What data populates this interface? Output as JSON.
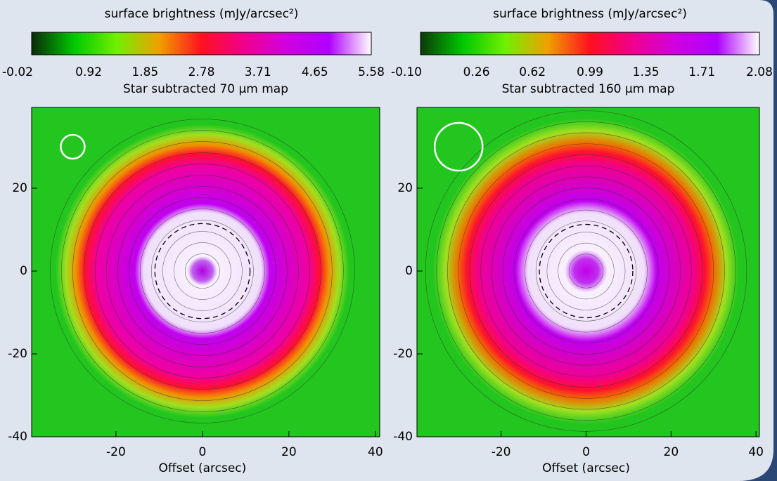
{
  "chart_data": [
    {
      "type": "image",
      "title": "Star subtracted 70 µm map",
      "colorbar_label": "surface brightness (mJy/arcsec²)",
      "clim": [
        -0.02,
        5.58
      ],
      "cticks": [
        -0.02,
        0.92,
        1.85,
        2.78,
        3.71,
        4.65,
        5.58
      ],
      "colormap": [
        "#0a2a0a",
        "#00c800",
        "#70f000",
        "#f0a000",
        "#ff1020",
        "#f0008c",
        "#d000e0",
        "#b000ff",
        "#ffffff"
      ],
      "xlabel": "Offset (arcsec)",
      "xlim": [
        -39.5,
        41
      ],
      "ylim": [
        -40,
        39.5
      ],
      "xticks": [
        -20,
        0,
        20,
        40
      ],
      "yticks": [
        20,
        0,
        -20,
        -40
      ]
    },
    {
      "type": "image",
      "title": "Star subtracted 160 µm map",
      "colorbar_label": "surface brightness (mJy/arcsec²)",
      "clim": [
        -0.1,
        2.08
      ],
      "cticks": [
        {
          "value": -0.1,
          "label": "-0.10"
        },
        0.26,
        0.62,
        0.99,
        1.35,
        1.71,
        2.08
      ],
      "colormap": [
        "#0a3a0a",
        "#00c800",
        "#70f000",
        "#f0a000",
        "#ff1020",
        "#f0008c",
        "#d000e0",
        "#b000ff",
        "#ffffff"
      ],
      "xlabel": "Offset (arcsec)",
      "xlim": [
        -39.8,
        40.8
      ],
      "ylim": [
        -40,
        39.5
      ],
      "xticks": [
        -20,
        0,
        20,
        40
      ],
      "yticks": [
        20,
        0,
        -20,
        -40
      ]
    }
  ]
}
